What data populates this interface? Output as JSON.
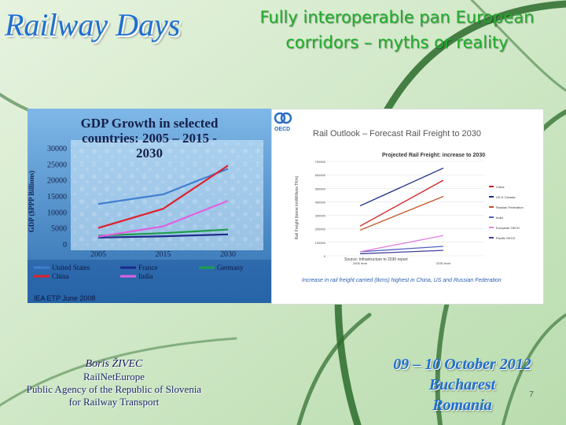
{
  "slide": {
    "brand": "Railway Days",
    "title": "Fully interoperable pan European corridors – myths or reality",
    "page_number": "7",
    "colors": {
      "background": "#cfe8c4",
      "brand": "#1f6fd0",
      "title": "#1fae2a",
      "swoosh": "#2b6b2b"
    }
  },
  "gdp_chart": {
    "title_line1": "GDP Growth in selected",
    "title_line2": "countries:  2005 – 2015 -",
    "title_line3": "2030",
    "ylabel": "GDP ($PPP Billions)",
    "y_ticks": [
      "30000",
      "25000",
      "20000",
      "15000",
      "10000",
      "5000",
      "0"
    ],
    "x_ticks": [
      "2005",
      "2015",
      "2030"
    ],
    "legend": [
      "United States",
      "France",
      "Germany",
      "China",
      "India"
    ],
    "source": "IEA ETP June 2008"
  },
  "rail_chart": {
    "logo": "OECD",
    "title": "Rail Outlook –  Forecast Rail Freight to 2030",
    "subtitle": "Projected Rail Freight: increase to 2030",
    "ylabel": "Rail Freight (tonne km/Millions TKm)",
    "y_ticks": [
      "700000",
      "600000",
      "500000",
      "400000",
      "300000",
      "200000",
      "100000",
      "0"
    ],
    "x_ticks": [
      "2005 level",
      "2030 level"
    ],
    "legend": [
      "China",
      "US & Canada",
      "Russian Federation",
      "India",
      "European OECD",
      "Pacific OECD"
    ],
    "source": "Source:  Infrastructure to 2030 report",
    "caption": "Increase in rail freight carried (tkms) highest in China, US and Russian Federation"
  },
  "chart_data": [
    {
      "type": "line",
      "title": "GDP Growth in selected countries: 2005 – 2015 - 2030",
      "xlabel": "",
      "ylabel": "GDP ($PPP Billions)",
      "x": [
        "2005",
        "2015",
        "2030"
      ],
      "ylim": [
        0,
        30000
      ],
      "series": [
        {
          "name": "United States",
          "values": [
            12500,
            15500,
            23500
          ],
          "color": "#3f7fd0"
        },
        {
          "name": "France",
          "values": [
            2000,
            2400,
            3000
          ],
          "color": "#1d2a8a"
        },
        {
          "name": "Germany",
          "values": [
            2600,
            3400,
            4500
          ],
          "color": "#1f9e4a"
        },
        {
          "name": "China",
          "values": [
            5000,
            11000,
            24500
          ],
          "color": "#e0202a"
        },
        {
          "name": "India",
          "values": [
            2300,
            5500,
            13500
          ],
          "color": "#e060e0"
        }
      ]
    },
    {
      "type": "line",
      "title": "Projected Rail Freight: increase to 2030",
      "xlabel": "",
      "ylabel": "Rail Freight (tonne km/Millions TKm)",
      "x": [
        "2005 level",
        "2030 level"
      ],
      "ylim": [
        0,
        700000
      ],
      "series": [
        {
          "name": "China",
          "values": [
            220000,
            560000
          ],
          "color": "#d02020"
        },
        {
          "name": "US & Canada",
          "values": [
            370000,
            650000
          ],
          "color": "#1d2a8a"
        },
        {
          "name": "Russian Federation",
          "values": [
            190000,
            440000
          ],
          "color": "#c05020"
        },
        {
          "name": "India",
          "values": [
            30000,
            70000
          ],
          "color": "#5060c0"
        },
        {
          "name": "European OECD",
          "values": [
            30000,
            150000
          ],
          "color": "#e080e0"
        },
        {
          "name": "Pacific OECD",
          "values": [
            15000,
            40000
          ],
          "color": "#4040a0"
        }
      ]
    }
  ],
  "footer": {
    "author_name": "Boris ŽIVEC",
    "author_line2": "RailNetEurope",
    "author_line3": "Public Agency of the Republic of Slovenia",
    "author_line4": "for Railway Transport",
    "event_dates": "09 – 10 October 2012",
    "event_city": "Bucharest",
    "event_country": "Romania"
  }
}
